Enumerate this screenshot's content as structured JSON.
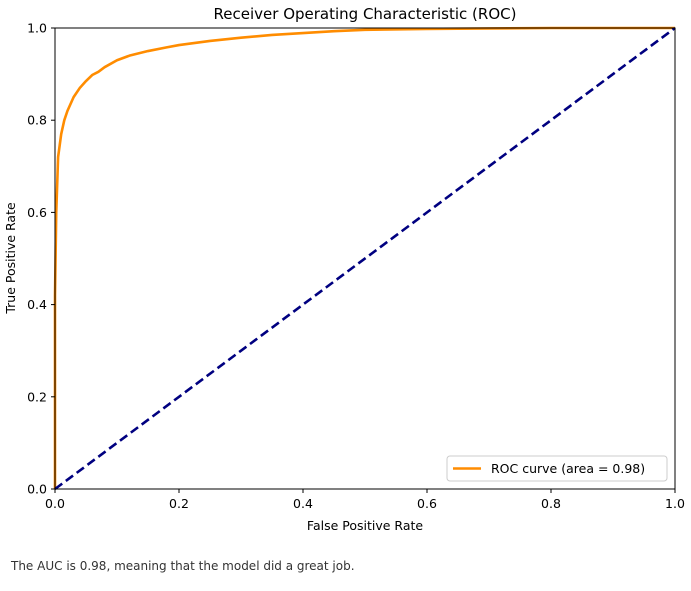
{
  "chart_data": {
    "type": "line",
    "title": "Receiver Operating Characteristic (ROC)",
    "xlabel": "False Positive Rate",
    "ylabel": "True Positive Rate",
    "xlim": [
      0.0,
      1.0
    ],
    "ylim": [
      0.0,
      1.0
    ],
    "xticks": [
      0.0,
      0.2,
      0.4,
      0.6,
      0.8,
      1.0
    ],
    "yticks": [
      0.0,
      0.2,
      0.4,
      0.6,
      0.8,
      1.0
    ],
    "xtick_labels": [
      "0.0",
      "0.2",
      "0.4",
      "0.6",
      "0.8",
      "1.0"
    ],
    "ytick_labels": [
      "0.0",
      "0.2",
      "0.4",
      "0.6",
      "0.8",
      "1.0"
    ],
    "grid": false,
    "legend_position": "lower-right",
    "series": [
      {
        "name": "ROC curve (area = 0.98)",
        "color": "#ff8c00",
        "style": "solid",
        "x": [
          0.0,
          0.0,
          0.002,
          0.005,
          0.01,
          0.015,
          0.02,
          0.03,
          0.04,
          0.05,
          0.06,
          0.07,
          0.08,
          0.1,
          0.12,
          0.15,
          0.18,
          0.2,
          0.25,
          0.3,
          0.35,
          0.4,
          0.45,
          0.5,
          0.6,
          0.7,
          0.8,
          0.9,
          1.0
        ],
        "y": [
          0.0,
          0.42,
          0.6,
          0.72,
          0.77,
          0.8,
          0.82,
          0.85,
          0.87,
          0.885,
          0.898,
          0.905,
          0.915,
          0.93,
          0.94,
          0.95,
          0.958,
          0.963,
          0.972,
          0.979,
          0.985,
          0.989,
          0.993,
          0.996,
          0.998,
          0.999,
          1.0,
          1.0,
          1.0
        ]
      },
      {
        "name": "",
        "color": "#000080",
        "style": "dashed",
        "x": [
          0.0,
          1.0
        ],
        "y": [
          0.0,
          1.0
        ]
      }
    ]
  },
  "caption": "The AUC is 0.98, meaning that the model did a great job."
}
